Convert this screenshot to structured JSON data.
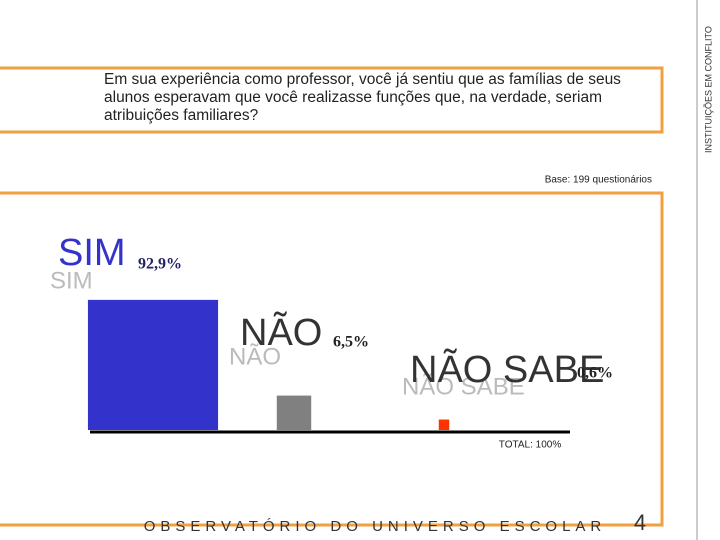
{
  "side_title": "INSTITUIÇÕES EM CONFLITO",
  "question": "Em sua experiência como professor, você já sentiu que as famílias de seus alunos esperavam que você realizasse funções que, na verdade, seriam atribuições familiares?",
  "base": "Base: 199 questionários",
  "chart_data": {
    "type": "bar",
    "categories": [
      "SIM",
      "NÃO",
      "NÃO SABE"
    ],
    "values": [
      92.9,
      6.5,
      0.6
    ],
    "value_labels": [
      "92,9%",
      "6,5%",
      "0,6%"
    ],
    "colors": [
      "#3333cc",
      "#808080",
      "#ff3300"
    ],
    "total": "TOTAL: 100%"
  },
  "footer": {
    "text": "OBSERVATÓRIO DO UNIVERSO ESCOLAR",
    "page": "4"
  }
}
